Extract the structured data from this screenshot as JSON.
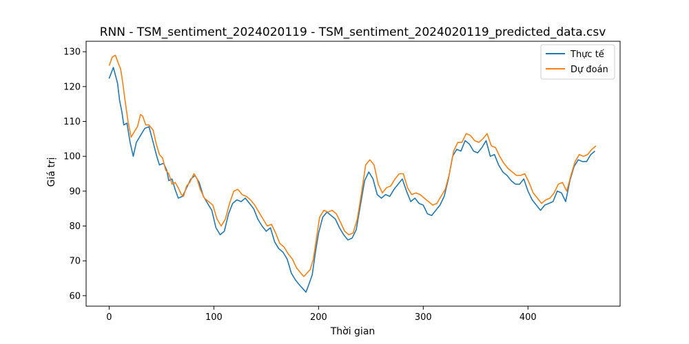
{
  "chart_data": {
    "type": "line",
    "title": "RNN - TSM_sentiment_2024020119 - TSM_sentiment_2024020119_predicted_data.csv",
    "xlabel": "Thời gian",
    "ylabel": "Giá trị",
    "xlim": [
      -22,
      488
    ],
    "ylim": [
      57,
      133
    ],
    "xticks": [
      0,
      100,
      200,
      300,
      400
    ],
    "yticks": [
      60,
      70,
      80,
      90,
      100,
      110,
      120,
      130
    ],
    "grid": false,
    "legend_position": "upper right",
    "series": [
      {
        "name": "Thực tế",
        "color": "#1f77b4",
        "x": [
          0,
          4,
          8,
          10,
          12,
          14,
          17,
          20,
          23,
          26,
          30,
          34,
          38,
          42,
          45,
          48,
          52,
          55,
          57,
          60,
          63,
          66,
          70,
          74,
          78,
          82,
          86,
          90,
          94,
          98,
          102,
          106,
          110,
          114,
          118,
          122,
          126,
          130,
          134,
          138,
          142,
          146,
          150,
          154,
          158,
          162,
          166,
          170,
          174,
          178,
          182,
          185,
          188,
          191,
          194,
          197,
          200,
          204,
          208,
          212,
          216,
          220,
          224,
          228,
          232,
          236,
          240,
          244,
          248,
          252,
          256,
          260,
          264,
          268,
          272,
          276,
          280,
          284,
          288,
          292,
          296,
          300,
          304,
          308,
          312,
          316,
          320,
          324,
          328,
          332,
          336,
          340,
          344,
          348,
          352,
          356,
          360,
          364,
          368,
          372,
          376,
          380,
          384,
          388,
          392,
          396,
          400,
          404,
          408,
          412,
          416,
          420,
          424,
          428,
          432,
          436,
          440,
          444,
          448,
          452,
          456,
          460,
          464
        ],
        "values": [
          122.3,
          125.5,
          121.0,
          116.0,
          113.0,
          109.0,
          109.5,
          104.0,
          100.0,
          104.0,
          106.0,
          108.0,
          108.5,
          104.0,
          100.5,
          97.5,
          98.0,
          96.0,
          93.0,
          93.5,
          90.5,
          88.0,
          88.5,
          91.0,
          93.5,
          94.5,
          92.5,
          88.5,
          86.5,
          84.5,
          79.5,
          77.5,
          78.5,
          83.5,
          86.5,
          87.5,
          87.0,
          88.0,
          86.5,
          85.0,
          82.0,
          80.0,
          78.5,
          79.5,
          75.5,
          73.5,
          72.5,
          70.5,
          66.5,
          64.5,
          63.0,
          62.0,
          61.0,
          63.5,
          66.0,
          72.5,
          78.0,
          82.5,
          84.0,
          83.0,
          82.0,
          79.5,
          77.5,
          76.0,
          76.5,
          79.0,
          86.0,
          93.0,
          95.5,
          93.5,
          89.0,
          88.0,
          89.0,
          88.5,
          90.5,
          92.0,
          93.5,
          90.0,
          87.0,
          88.0,
          86.5,
          86.0,
          83.5,
          83.0,
          84.5,
          86.0,
          88.5,
          93.5,
          100.0,
          102.0,
          101.5,
          104.5,
          103.5,
          101.5,
          101.0,
          102.5,
          104.5,
          100.0,
          100.5,
          97.5,
          95.5,
          94.5,
          93.0,
          92.0,
          92.0,
          93.5,
          90.0,
          87.5,
          86.0,
          84.5,
          86.0,
          86.5,
          87.0,
          90.0,
          89.5,
          87.0,
          93.0,
          97.0,
          99.0,
          98.5,
          98.5,
          100.5,
          101.5
        ]
      },
      {
        "name": "Dự đoán",
        "color": "#ff7f0e",
        "x": [
          0,
          3,
          6,
          9,
          11,
          13,
          15,
          18,
          21,
          24,
          27,
          30,
          32,
          35,
          38,
          42,
          45,
          48,
          51,
          54,
          57,
          60,
          63,
          66,
          69,
          71,
          74,
          77,
          81,
          84,
          87,
          91,
          95,
          99,
          103,
          107,
          111,
          115,
          119,
          123,
          127,
          131,
          135,
          139,
          143,
          147,
          151,
          155,
          159,
          163,
          167,
          171,
          175,
          179,
          183,
          186,
          189,
          192,
          195,
          198,
          201,
          205,
          209,
          213,
          217,
          221,
          225,
          229,
          233,
          237,
          241,
          245,
          249,
          253,
          257,
          261,
          265,
          269,
          273,
          277,
          281,
          285,
          289,
          293,
          297,
          301,
          305,
          309,
          313,
          317,
          321,
          325,
          329,
          333,
          337,
          341,
          345,
          349,
          353,
          357,
          361,
          365,
          369,
          373,
          377,
          381,
          385,
          389,
          393,
          397,
          401,
          405,
          409,
          413,
          417,
          421,
          425,
          429,
          433,
          437,
          441,
          445,
          449,
          453,
          457,
          461,
          465
        ],
        "values": [
          126.0,
          128.5,
          129.0,
          126.5,
          125.0,
          121.0,
          116.5,
          110.0,
          105.5,
          107.0,
          108.5,
          112.0,
          111.5,
          109.0,
          109.0,
          107.5,
          103.5,
          100.5,
          99.5,
          96.0,
          95.0,
          92.0,
          92.5,
          91.0,
          89.0,
          88.5,
          91.5,
          92.5,
          95.0,
          93.5,
          90.5,
          88.0,
          87.0,
          86.0,
          82.0,
          80.0,
          82.0,
          86.5,
          90.0,
          90.5,
          89.0,
          88.5,
          87.5,
          86.0,
          84.0,
          82.0,
          80.0,
          80.5,
          78.0,
          75.0,
          74.0,
          72.0,
          70.5,
          68.0,
          66.5,
          65.5,
          66.5,
          67.5,
          70.5,
          76.5,
          82.5,
          84.5,
          84.0,
          84.5,
          83.5,
          81.0,
          78.5,
          77.5,
          78.0,
          82.0,
          89.5,
          97.5,
          99.0,
          97.5,
          92.0,
          89.5,
          91.0,
          91.5,
          93.5,
          95.0,
          95.0,
          91.0,
          89.0,
          89.5,
          89.0,
          88.0,
          87.0,
          86.0,
          86.5,
          88.5,
          90.5,
          95.0,
          101.5,
          104.0,
          104.0,
          106.5,
          106.0,
          104.5,
          104.0,
          105.0,
          106.5,
          103.0,
          102.5,
          100.0,
          98.0,
          96.5,
          95.5,
          94.5,
          94.5,
          95.0,
          92.5,
          89.5,
          88.0,
          86.5,
          87.5,
          88.0,
          89.5,
          92.0,
          92.5,
          90.0,
          94.5,
          98.5,
          100.5,
          100.0,
          100.5,
          102.0,
          103.0
        ]
      }
    ]
  }
}
